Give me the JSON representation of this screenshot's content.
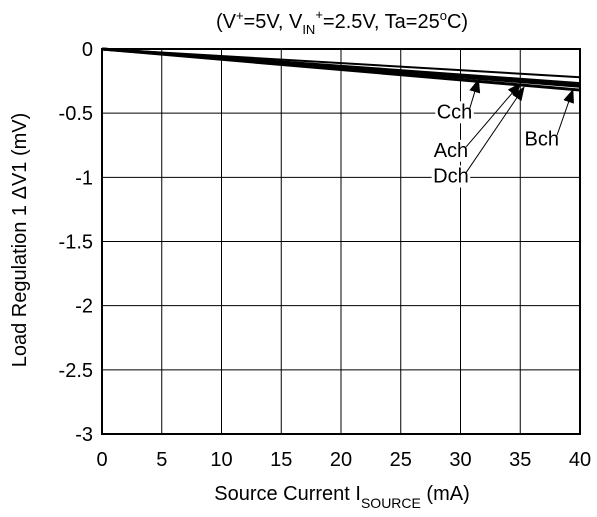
{
  "chart_data": {
    "type": "line",
    "title_parts": {
      "open": "(V",
      "vplus_sup": "+",
      "mid1": "=5V, V",
      "vin_sub": "IN",
      "vin_sup": "+",
      "mid2": "=2.5V, Ta=25",
      "deg_sup": "o",
      "close": "C)"
    },
    "xlabel_parts": {
      "main": "Source Current  I",
      "sub": "SOURCE",
      "unit": "  (mA)"
    },
    "ylabel": "Load Regulation 1  ΔV1  (mV)",
    "xlim": [
      0,
      40
    ],
    "ylim": [
      -3,
      0
    ],
    "x_ticks": [
      0,
      5,
      10,
      15,
      20,
      25,
      30,
      35,
      40
    ],
    "y_ticks": [
      0,
      -0.5,
      -1,
      -1.5,
      -2,
      -2.5,
      -3
    ],
    "x_tick_labels": [
      "0",
      "5",
      "10",
      "15",
      "20",
      "25",
      "30",
      "35",
      "40"
    ],
    "y_tick_labels": [
      "0",
      "-0.5",
      "-1",
      "-1.5",
      "-2",
      "-2.5",
      "-3"
    ],
    "grid": true,
    "series": [
      {
        "name": "Cch",
        "x": [
          0,
          40
        ],
        "y": [
          0,
          -0.22
        ]
      },
      {
        "name": "Ach",
        "x": [
          0,
          40
        ],
        "y": [
          0,
          -0.27
        ]
      },
      {
        "name": "Dch",
        "x": [
          0,
          40
        ],
        "y": [
          0,
          -0.29
        ]
      },
      {
        "name": "Bch",
        "x": [
          0,
          40
        ],
        "y": [
          0,
          -0.32
        ]
      }
    ],
    "annotations": [
      {
        "text": "Cch",
        "x": 29.5,
        "y": -0.54,
        "arrow_to": [
          31.5,
          -0.24
        ]
      },
      {
        "text": "Ach",
        "x": 29.2,
        "y": -0.84,
        "arrow_to": [
          35,
          -0.27
        ]
      },
      {
        "text": "Dch",
        "x": 29.2,
        "y": -1.04,
        "arrow_to": [
          35.3,
          -0.3
        ]
      },
      {
        "text": "Bch",
        "x": 36.8,
        "y": -0.75,
        "arrow_to": [
          39.4,
          -0.32
        ]
      }
    ]
  }
}
